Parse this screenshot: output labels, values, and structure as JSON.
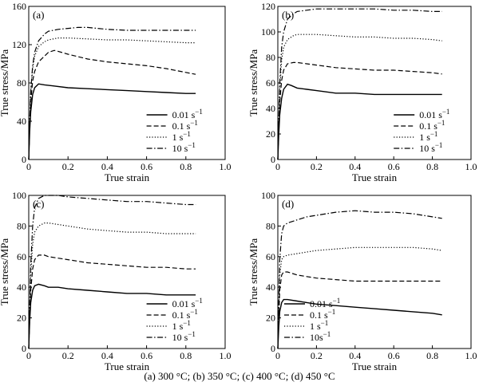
{
  "caption": "(a) 300 °C; (b) 350 °C; (c) 400 °C; (d) 450 °C",
  "chart_data": [
    {
      "type": "line",
      "panel": "(a)",
      "xlabel": "True strain",
      "ylabel": "True stress/MPa",
      "xlim": [
        0,
        1.0
      ],
      "ylim": [
        0,
        160
      ],
      "xticks": [
        0,
        0.2,
        0.4,
        0.6,
        0.8,
        1.0
      ],
      "xtick_labels": [
        "0",
        "0.2",
        "0.4",
        "0.6",
        "0.8",
        "1.0"
      ],
      "yticks": [
        0,
        40,
        80,
        120,
        160
      ],
      "ytick_labels": [
        "0",
        "40",
        "80",
        "120",
        "160"
      ],
      "legend_position": "bottom-right",
      "series": [
        {
          "name": "0.01 s⁻¹",
          "legend_base": "0.01 s",
          "legend_sup": "−1",
          "style": "solid",
          "x": [
            0,
            0.005,
            0.01,
            0.02,
            0.03,
            0.05,
            0.08,
            0.12,
            0.2,
            0.3,
            0.4,
            0.5,
            0.6,
            0.7,
            0.8,
            0.85
          ],
          "y": [
            0,
            30,
            50,
            68,
            75,
            79,
            78,
            77,
            75,
            74,
            73,
            72,
            71,
            70,
            69,
            69
          ]
        },
        {
          "name": "0.1 s⁻¹",
          "legend_base": "0.1 s",
          "legend_sup": "−1",
          "style": "dashed",
          "x": [
            0,
            0.005,
            0.01,
            0.02,
            0.03,
            0.05,
            0.08,
            0.1,
            0.13,
            0.15,
            0.2,
            0.3,
            0.4,
            0.5,
            0.6,
            0.7,
            0.8,
            0.85
          ],
          "y": [
            0,
            35,
            60,
            82,
            92,
            102,
            108,
            112,
            114,
            113,
            110,
            105,
            102,
            100,
            98,
            95,
            91,
            89
          ]
        },
        {
          "name": "1 s⁻¹",
          "legend_base": "1 s",
          "legend_sup": "−1",
          "style": "dotted",
          "x": [
            0,
            0.005,
            0.01,
            0.02,
            0.03,
            0.05,
            0.08,
            0.1,
            0.15,
            0.2,
            0.3,
            0.4,
            0.5,
            0.6,
            0.7,
            0.8,
            0.85
          ],
          "y": [
            0,
            40,
            70,
            95,
            108,
            118,
            123,
            125,
            127,
            127,
            126,
            125,
            125,
            124,
            123,
            122,
            122
          ]
        },
        {
          "name": "10 s⁻¹",
          "legend_base": "10 s",
          "legend_sup": "−1",
          "style": "dashdot",
          "x": [
            0,
            0.005,
            0.01,
            0.02,
            0.03,
            0.05,
            0.08,
            0.1,
            0.15,
            0.2,
            0.25,
            0.3,
            0.35,
            0.4,
            0.5,
            0.6,
            0.7,
            0.8,
            0.85
          ],
          "y": [
            0,
            40,
            72,
            98,
            112,
            124,
            131,
            134,
            136,
            137,
            138,
            138,
            137,
            136,
            135,
            135,
            135,
            135,
            135
          ]
        }
      ]
    },
    {
      "type": "line",
      "panel": "(b)",
      "xlabel": "True strain",
      "ylabel": "True stress/MPa",
      "xlim": [
        0,
        1.0
      ],
      "ylim": [
        0,
        120
      ],
      "xticks": [
        0,
        0.2,
        0.4,
        0.6,
        0.8,
        1.0
      ],
      "xtick_labels": [
        "0",
        "0.2",
        "0.4",
        "0.6",
        "0.8",
        "1.0"
      ],
      "yticks": [
        0,
        20,
        40,
        60,
        80,
        100,
        120
      ],
      "ytick_labels": [
        "0",
        "20",
        "40",
        "60",
        "80",
        "100",
        "120"
      ],
      "legend_position": "bottom-right",
      "series": [
        {
          "name": "0.01 s⁻¹",
          "legend_base": "0.01 s",
          "legend_sup": "−1",
          "style": "solid",
          "x": [
            0,
            0.005,
            0.01,
            0.02,
            0.03,
            0.05,
            0.07,
            0.1,
            0.15,
            0.2,
            0.3,
            0.4,
            0.5,
            0.6,
            0.7,
            0.8,
            0.85
          ],
          "y": [
            0,
            20,
            35,
            48,
            55,
            59,
            58,
            56,
            55,
            54,
            52,
            52,
            51,
            51,
            51,
            51,
            51
          ]
        },
        {
          "name": "0.1 s⁻¹",
          "legend_base": "0.1 s",
          "legend_sup": "−1",
          "style": "dashed",
          "x": [
            0,
            0.005,
            0.01,
            0.02,
            0.03,
            0.05,
            0.08,
            0.1,
            0.15,
            0.2,
            0.3,
            0.4,
            0.5,
            0.6,
            0.7,
            0.8,
            0.85
          ],
          "y": [
            0,
            25,
            45,
            62,
            70,
            75,
            76,
            76,
            75,
            74,
            72,
            71,
            70,
            70,
            69,
            68,
            67
          ]
        },
        {
          "name": "1 s⁻¹",
          "legend_base": "1 s",
          "legend_sup": "−1",
          "style": "dotted",
          "x": [
            0,
            0.005,
            0.01,
            0.02,
            0.03,
            0.05,
            0.08,
            0.1,
            0.15,
            0.2,
            0.3,
            0.4,
            0.5,
            0.6,
            0.7,
            0.8,
            0.85
          ],
          "y": [
            0,
            30,
            55,
            78,
            88,
            94,
            97,
            98,
            98,
            98,
            97,
            96,
            96,
            95,
            95,
            94,
            93
          ]
        },
        {
          "name": "10 s⁻¹",
          "legend_base": "10 s",
          "legend_sup": "−1",
          "style": "dashdot",
          "x": [
            0,
            0.005,
            0.01,
            0.02,
            0.03,
            0.05,
            0.08,
            0.1,
            0.15,
            0.2,
            0.3,
            0.4,
            0.5,
            0.6,
            0.7,
            0.8,
            0.85
          ],
          "y": [
            0,
            30,
            60,
            88,
            100,
            110,
            114,
            116,
            117,
            118,
            118,
            118,
            118,
            117,
            117,
            116,
            116
          ]
        }
      ]
    },
    {
      "type": "line",
      "panel": "(c)",
      "xlabel": "True strain",
      "ylabel": "True stress/MPa",
      "xlim": [
        0,
        1.0
      ],
      "ylim": [
        0,
        100
      ],
      "xticks": [
        0,
        0.2,
        0.4,
        0.6,
        0.8,
        1.0
      ],
      "xtick_labels": [
        "0",
        "0.2",
        "0.4",
        "0.6",
        "0.8",
        "1.0"
      ],
      "yticks": [
        0,
        20,
        40,
        60,
        80,
        100
      ],
      "ytick_labels": [
        "0",
        "20",
        "40",
        "60",
        "80",
        "100"
      ],
      "legend_position": "bottom-right",
      "series": [
        {
          "name": "0.01 s⁻¹",
          "legend_base": "0.01 s",
          "legend_sup": "−1",
          "style": "solid",
          "x": [
            0,
            0.005,
            0.01,
            0.02,
            0.03,
            0.05,
            0.08,
            0.1,
            0.15,
            0.2,
            0.3,
            0.4,
            0.5,
            0.6,
            0.7,
            0.8,
            0.85
          ],
          "y": [
            0,
            18,
            30,
            38,
            41,
            42,
            41,
            40,
            40,
            39,
            38,
            37,
            36,
            36,
            35,
            35,
            35
          ]
        },
        {
          "name": "0.1 s⁻¹",
          "legend_base": "0.1 s",
          "legend_sup": "−1",
          "style": "dashed",
          "x": [
            0,
            0.005,
            0.01,
            0.02,
            0.03,
            0.05,
            0.08,
            0.1,
            0.15,
            0.2,
            0.3,
            0.4,
            0.5,
            0.6,
            0.7,
            0.8,
            0.85
          ],
          "y": [
            0,
            20,
            38,
            52,
            58,
            61,
            61,
            60,
            59,
            58,
            56,
            55,
            54,
            53,
            53,
            52,
            52
          ]
        },
        {
          "name": "1 s⁻¹",
          "legend_base": "1 s",
          "legend_sup": "−1",
          "style": "dotted",
          "x": [
            0,
            0.005,
            0.01,
            0.02,
            0.03,
            0.05,
            0.08,
            0.1,
            0.15,
            0.2,
            0.3,
            0.4,
            0.5,
            0.6,
            0.7,
            0.8,
            0.85
          ],
          "y": [
            0,
            25,
            48,
            68,
            76,
            80,
            82,
            82,
            81,
            80,
            78,
            77,
            76,
            76,
            75,
            75,
            75
          ]
        },
        {
          "name": "10 s⁻¹",
          "legend_base": "10 s",
          "legend_sup": "−1",
          "style": "dashdot",
          "x": [
            0,
            0.005,
            0.01,
            0.02,
            0.03,
            0.05,
            0.08,
            0.1,
            0.15,
            0.2,
            0.3,
            0.4,
            0.5,
            0.6,
            0.7,
            0.8,
            0.85
          ],
          "y": [
            0,
            28,
            55,
            80,
            92,
            98,
            100,
            100,
            100,
            99,
            98,
            97,
            96,
            96,
            95,
            94,
            94
          ]
        }
      ]
    },
    {
      "type": "line",
      "panel": "(d)",
      "xlabel": "True strain",
      "ylabel": "True stress/MPa",
      "xlim": [
        0,
        1.0
      ],
      "ylim": [
        0,
        100
      ],
      "xticks": [
        0,
        0.2,
        0.4,
        0.6,
        0.8,
        1.0
      ],
      "xtick_labels": [
        "0",
        "0.2",
        "0.4",
        "0.6",
        "0.8",
        "1.0"
      ],
      "yticks": [
        0,
        20,
        40,
        60,
        80,
        100
      ],
      "ytick_labels": [
        "0",
        "20",
        "40",
        "60",
        "80",
        "100"
      ],
      "legend_position": "bottom-left",
      "series": [
        {
          "name": "0.01 s⁻¹",
          "legend_base": "0.01 s",
          "legend_sup": "−1",
          "style": "solid",
          "x": [
            0,
            0.005,
            0.01,
            0.02,
            0.03,
            0.05,
            0.1,
            0.15,
            0.2,
            0.3,
            0.4,
            0.5,
            0.6,
            0.7,
            0.8,
            0.85
          ],
          "y": [
            0,
            14,
            24,
            30,
            32,
            32,
            31,
            30,
            29,
            28,
            27,
            26,
            25,
            24,
            23,
            22
          ]
        },
        {
          "name": "0.1 s⁻¹",
          "legend_base": "0.1 s",
          "legend_sup": "−1",
          "style": "dashed",
          "x": [
            0,
            0.005,
            0.01,
            0.02,
            0.03,
            0.05,
            0.1,
            0.15,
            0.2,
            0.3,
            0.4,
            0.5,
            0.6,
            0.7,
            0.8,
            0.85
          ],
          "y": [
            0,
            20,
            38,
            48,
            50,
            50,
            48,
            47,
            46,
            45,
            44,
            44,
            44,
            44,
            44,
            44
          ]
        },
        {
          "name": "1 s⁻¹",
          "legend_base": "1 s",
          "legend_sup": "−1",
          "style": "dotted",
          "x": [
            0,
            0.005,
            0.01,
            0.02,
            0.03,
            0.05,
            0.1,
            0.15,
            0.2,
            0.3,
            0.4,
            0.5,
            0.6,
            0.7,
            0.8,
            0.85
          ],
          "y": [
            0,
            25,
            48,
            58,
            60,
            61,
            62,
            63,
            64,
            65,
            66,
            66,
            66,
            66,
            65,
            64
          ]
        },
        {
          "name": "10 s⁻¹",
          "legend_base": "10s",
          "legend_sup": "−1",
          "style": "dashdot",
          "x": [
            0,
            0.005,
            0.01,
            0.02,
            0.03,
            0.05,
            0.1,
            0.15,
            0.2,
            0.3,
            0.4,
            0.5,
            0.6,
            0.7,
            0.8,
            0.85
          ],
          "y": [
            0,
            30,
            58,
            75,
            80,
            82,
            84,
            86,
            87,
            89,
            90,
            89,
            89,
            88,
            86,
            85
          ]
        }
      ]
    }
  ]
}
